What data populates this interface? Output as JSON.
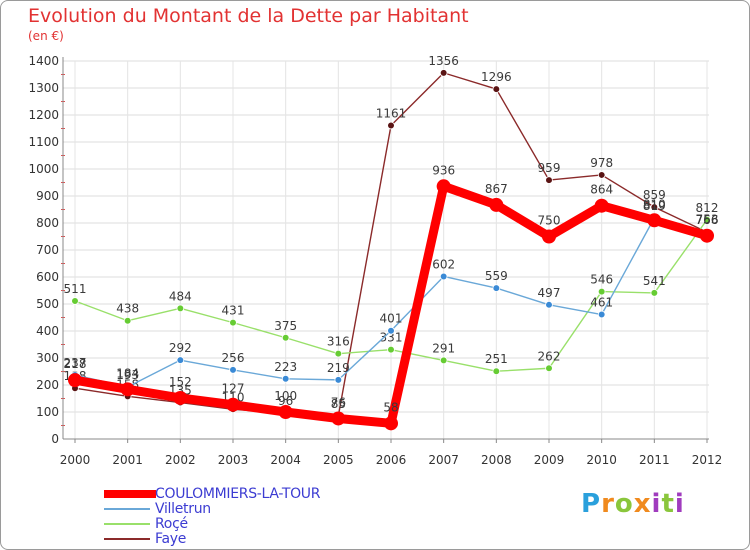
{
  "title": "Evolution du Montant de la Dette par Habitant",
  "subtitle": "(en €)",
  "brand_logo": "Proxiti",
  "chart_data": {
    "type": "line",
    "x": [
      "2000",
      "2001",
      "2002",
      "2003",
      "2004",
      "2005",
      "2006",
      "2007",
      "2008",
      "2009",
      "2010",
      "2011",
      "2012"
    ],
    "ylim": [
      0,
      1400
    ],
    "yticks": [
      0,
      100,
      200,
      300,
      400,
      500,
      600,
      700,
      800,
      900,
      1000,
      1100,
      1200,
      1300,
      1400
    ],
    "grid": true,
    "legend": "bottom-left",
    "series": [
      {
        "name": "Faye",
        "color": "#8b2a2a",
        "marker": "#5a1414",
        "values": [
          188,
          158,
          135,
          110,
          96,
          85,
          1161,
          1356,
          1296,
          959,
          978,
          859,
          766
        ]
      },
      {
        "name": "Roçé",
        "color": "#99e06a",
        "marker": "#66cc33",
        "values": [
          511,
          438,
          484,
          431,
          375,
          316,
          331,
          291,
          251,
          262,
          546,
          541,
          812
        ]
      },
      {
        "name": "Villetrun",
        "color": "#6aa8d8",
        "marker": "#3a8ad6",
        "values": [
          237,
          193,
          292,
          256,
          223,
          219,
          401,
          602,
          559,
          497,
          461,
          819,
          766
        ]
      },
      {
        "name": "COULOMMIERS-LA-TOUR",
        "color": "#ff0000",
        "marker": "#ff0000",
        "values": [
          218,
          184,
          152,
          127,
          100,
          76,
          58,
          936,
          867,
          750,
          864,
          810,
          753
        ]
      }
    ]
  }
}
